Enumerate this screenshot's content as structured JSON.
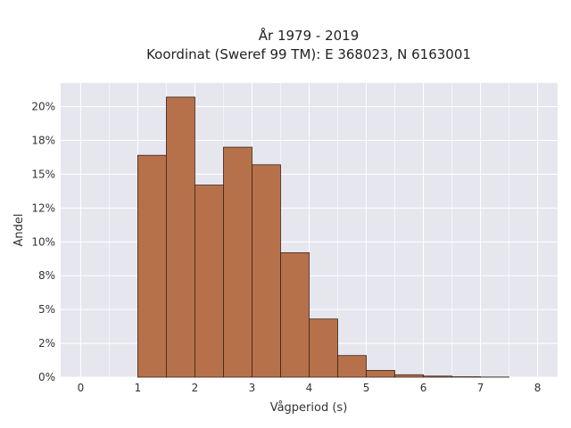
{
  "chart_data": {
    "type": "bar",
    "title_line1": "År 1979 - 2019",
    "title_line2": "Koordinat (Sweref 99 TM): E 368023, N 6163001",
    "xlabel": "Vågperiod (s)",
    "ylabel": "Andel",
    "xlim": [
      -0.35,
      8.35
    ],
    "ylim": [
      0,
      0.2175
    ],
    "x_ticks": [
      {
        "value": 0,
        "label": "0"
      },
      {
        "value": 1,
        "label": "1"
      },
      {
        "value": 2,
        "label": "2"
      },
      {
        "value": 3,
        "label": "3"
      },
      {
        "value": 4,
        "label": "4"
      },
      {
        "value": 5,
        "label": "5"
      },
      {
        "value": 6,
        "label": "6"
      },
      {
        "value": 7,
        "label": "7"
      },
      {
        "value": 8,
        "label": "8"
      }
    ],
    "y_ticks": [
      {
        "value": 0,
        "label": "0%"
      },
      {
        "value": 0.025,
        "label": "2%"
      },
      {
        "value": 0.05,
        "label": "5%"
      },
      {
        "value": 0.075,
        "label": "8%"
      },
      {
        "value": 0.1,
        "label": "10%"
      },
      {
        "value": 0.125,
        "label": "12%"
      },
      {
        "value": 0.15,
        "label": "15%"
      },
      {
        "value": 0.175,
        "label": "18%"
      },
      {
        "value": 0.2,
        "label": "20%"
      }
    ],
    "bins": [
      {
        "start": 1.0,
        "end": 1.5,
        "value": 0.164
      },
      {
        "start": 1.5,
        "end": 2.0,
        "value": 0.207
      },
      {
        "start": 2.0,
        "end": 2.5,
        "value": 0.142
      },
      {
        "start": 2.5,
        "end": 3.0,
        "value": 0.17
      },
      {
        "start": 3.0,
        "end": 3.5,
        "value": 0.157
      },
      {
        "start": 3.5,
        "end": 4.0,
        "value": 0.092
      },
      {
        "start": 4.0,
        "end": 4.5,
        "value": 0.043
      },
      {
        "start": 4.5,
        "end": 5.0,
        "value": 0.016
      },
      {
        "start": 5.0,
        "end": 5.5,
        "value": 0.005
      },
      {
        "start": 5.5,
        "end": 6.0,
        "value": 0.0018
      },
      {
        "start": 6.0,
        "end": 6.5,
        "value": 0.0008
      },
      {
        "start": 6.5,
        "end": 7.0,
        "value": 0.0003
      },
      {
        "start": 7.0,
        "end": 7.5,
        "value": 0.0001
      }
    ],
    "colors": {
      "bar_fill": "#b7714a",
      "bar_stroke": "#3a2418",
      "plot_bg": "#e6e6ef",
      "grid": "#ffffff"
    },
    "grid": true
  }
}
